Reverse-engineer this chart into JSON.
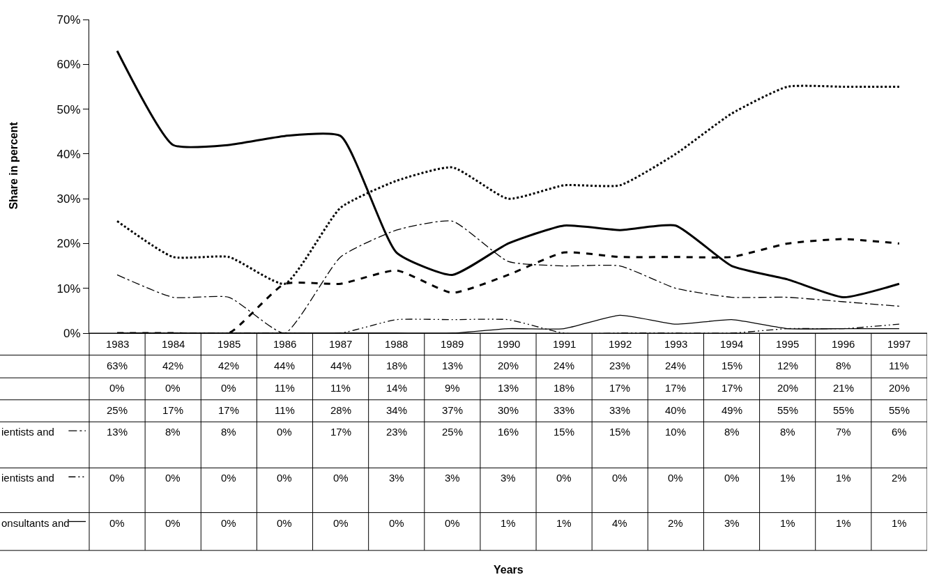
{
  "chart_data": {
    "type": "line",
    "ylabel": "Share in percent",
    "annotations": [
      "Years"
    ],
    "categories": [
      "1983",
      "1984",
      "1985",
      "1986",
      "1987",
      "1988",
      "1989",
      "1990",
      "1991",
      "1992",
      "1993",
      "1994",
      "1995",
      "1996",
      "1997"
    ],
    "series": [
      {
        "color": "#000000",
        "line_style": "solid",
        "values": [
          63,
          42,
          42,
          44,
          44,
          18,
          13,
          20,
          24,
          23,
          24,
          15,
          12,
          8,
          11
        ],
        "value_labels": [
          "63%",
          "42%",
          "42%",
          "44%",
          "44%",
          "18%",
          "13%",
          "20%",
          "24%",
          "23%",
          "24%",
          "15%",
          "12%",
          "8%",
          "11%"
        ]
      },
      {
        "color": "#000000",
        "line_style": "dashed",
        "values": [
          0,
          0,
          0,
          11,
          11,
          14,
          9,
          13,
          18,
          17,
          17,
          17,
          20,
          21,
          20
        ],
        "value_labels": [
          "0%",
          "0%",
          "0%",
          "11%",
          "11%",
          "14%",
          "9%",
          "13%",
          "18%",
          "17%",
          "17%",
          "17%",
          "20%",
          "21%",
          "20%"
        ]
      },
      {
        "color": "#000000",
        "line_style": "dotted",
        "values": [
          25,
          17,
          17,
          11,
          28,
          34,
          37,
          30,
          33,
          33,
          40,
          49,
          55,
          55,
          55
        ],
        "value_labels": [
          "25%",
          "17%",
          "17%",
          "11%",
          "28%",
          "34%",
          "37%",
          "30%",
          "33%",
          "33%",
          "40%",
          "49%",
          "55%",
          "55%",
          "55%"
        ]
      },
      {
        "name": "ientists and",
        "color": "#000000",
        "line_style": "dashdot",
        "values": [
          13,
          8,
          8,
          0,
          17,
          23,
          25,
          16,
          15,
          15,
          10,
          8,
          8,
          7,
          6
        ],
        "value_labels": [
          "13%",
          "8%",
          "8%",
          "0%",
          "17%",
          "23%",
          "25%",
          "16%",
          "15%",
          "15%",
          "10%",
          "8%",
          "8%",
          "7%",
          "6%"
        ]
      },
      {
        "name": "ientists and",
        "color": "#000000",
        "line_style": "dashdotdot",
        "values": [
          0,
          0,
          0,
          0,
          0,
          3,
          3,
          3,
          0,
          0,
          0,
          0,
          1,
          1,
          2
        ],
        "value_labels": [
          "0%",
          "0%",
          "0%",
          "0%",
          "0%",
          "3%",
          "3%",
          "3%",
          "0%",
          "0%",
          "0%",
          "0%",
          "1%",
          "1%",
          "2%"
        ]
      },
      {
        "name": "onsultants and",
        "color": "#000000",
        "line_style": "solid",
        "values": [
          0,
          0,
          0,
          0,
          0,
          0,
          0,
          1,
          1,
          4,
          2,
          3,
          1,
          1,
          1
        ],
        "value_labels": [
          "0%",
          "0%",
          "0%",
          "0%",
          "0%",
          "0%",
          "0%",
          "1%",
          "1%",
          "4%",
          "2%",
          "3%",
          "1%",
          "1%",
          "1%"
        ]
      }
    ],
    "ylim": [
      0,
      70
    ],
    "yticks": [
      {
        "value": 0,
        "label": "0%"
      },
      {
        "value": 10,
        "label": "10%"
      },
      {
        "value": 20,
        "label": "20%"
      },
      {
        "value": 30,
        "label": "30%"
      },
      {
        "value": 40,
        "label": "40%"
      },
      {
        "value": 50,
        "label": "50%"
      },
      {
        "value": 60,
        "label": "60%"
      },
      {
        "value": 70,
        "label": "70%"
      }
    ],
    "tick_labels": "y",
    "grid": false,
    "legend": "left",
    "marker": "none"
  }
}
